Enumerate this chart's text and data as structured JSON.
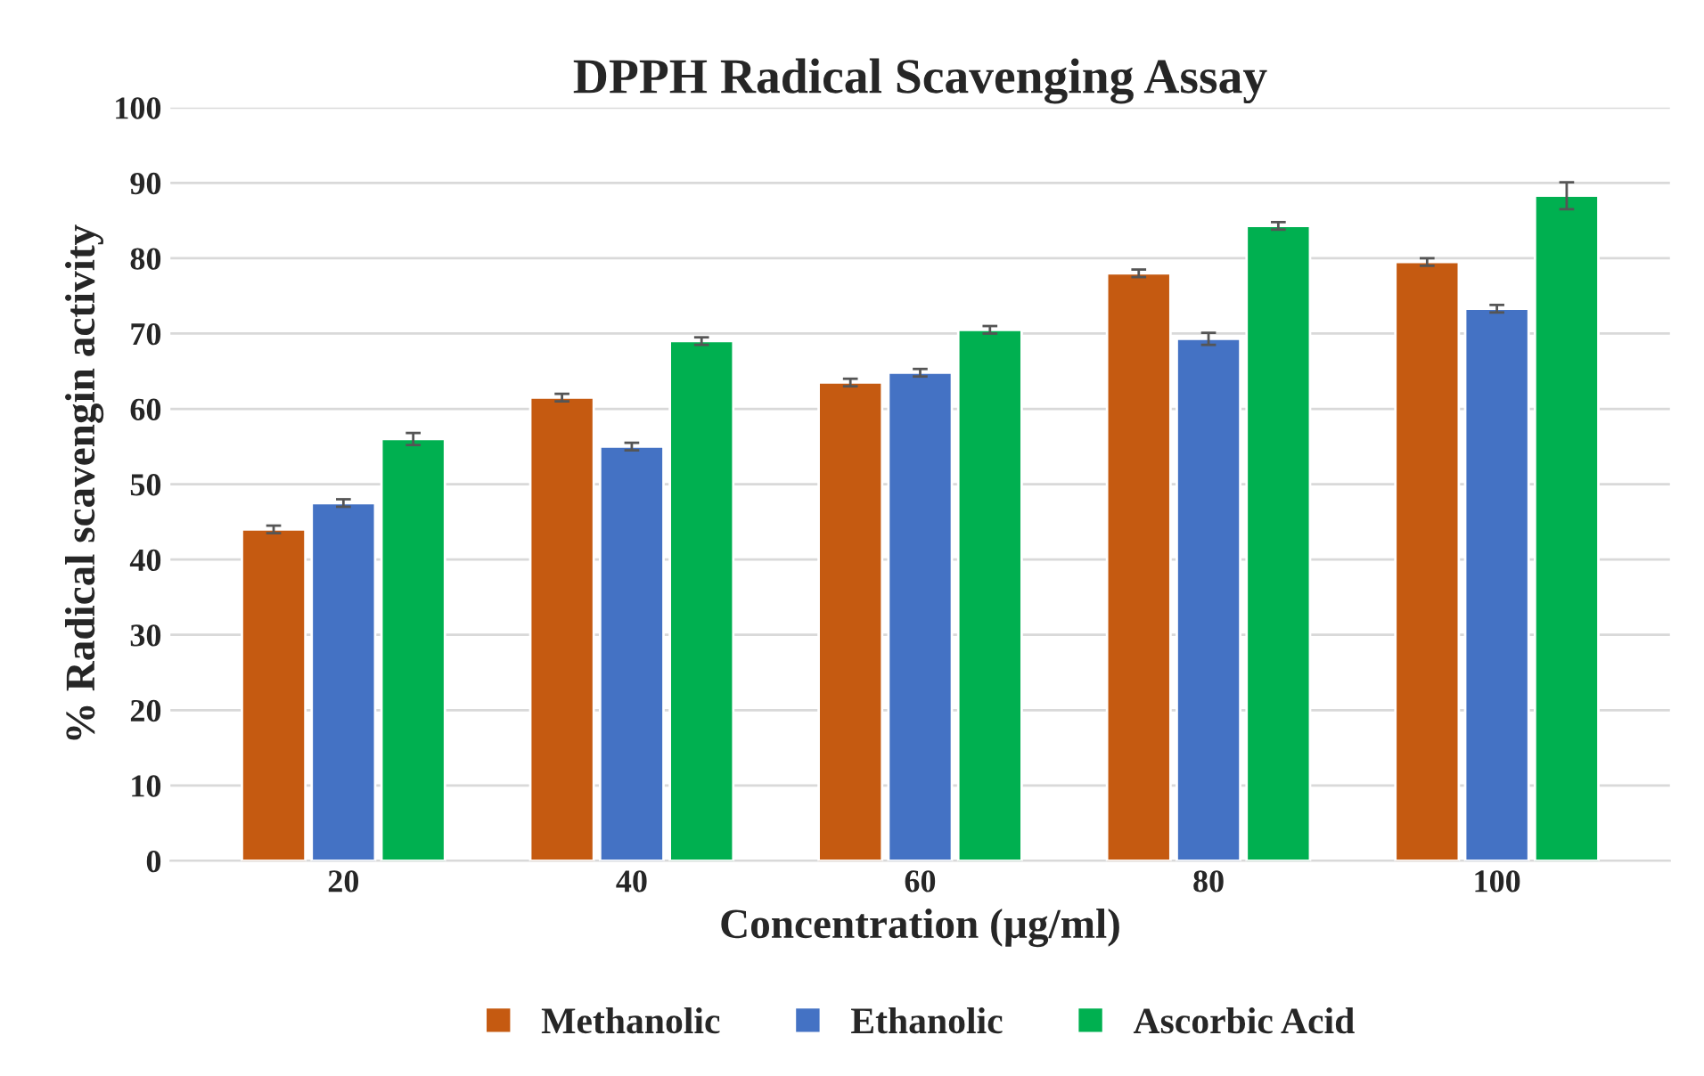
{
  "chart_data": {
    "type": "bar",
    "title": "DPPH Radical Scavenging Assay",
    "xlabel": "Concentration (µg/ml)",
    "ylabel": "% Radical scavengin activity",
    "categories": [
      "20",
      "40",
      "60",
      "80",
      "100"
    ],
    "series": [
      {
        "name": "Methanolic",
        "color": "#c55a11",
        "values": [
          44,
          61.5,
          63.5,
          78,
          79.5
        ],
        "errors": [
          0.5,
          0.5,
          0.5,
          0.5,
          0.5
        ]
      },
      {
        "name": "Ethanolic",
        "color": "#4472c4",
        "values": [
          47.5,
          55,
          64.8,
          69.3,
          73.3
        ],
        "errors": [
          0.5,
          0.5,
          0.5,
          0.8,
          0.5
        ]
      },
      {
        "name": "Ascorbic Acid",
        "color": "#00b050",
        "values": [
          56,
          69,
          70.5,
          84.3,
          88.3
        ],
        "errors": [
          0.8,
          0.5,
          0.5,
          0.5,
          1.8
        ]
      }
    ],
    "ylim": [
      0,
      100
    ],
    "yticks": [
      0,
      10,
      20,
      30,
      40,
      50,
      60,
      70,
      80,
      90,
      100
    ],
    "grid": "y",
    "legend": "bottom"
  }
}
